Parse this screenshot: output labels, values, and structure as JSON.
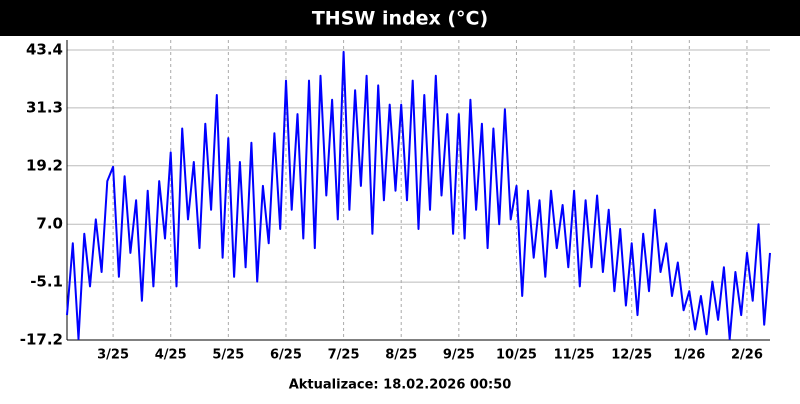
{
  "chart_data": {
    "type": "line",
    "title": "THSW index (°C)",
    "footer": "Aktualizace: 18.02.2026 00:50",
    "categories": [
      null,
      null,
      null,
      null,
      null,
      null,
      null,
      null,
      "3/25",
      null,
      null,
      null,
      null,
      null,
      null,
      null,
      null,
      null,
      "4/25",
      null,
      null,
      null,
      null,
      null,
      null,
      null,
      null,
      null,
      "5/25",
      null,
      null,
      null,
      null,
      null,
      null,
      null,
      null,
      null,
      "6/25",
      null,
      null,
      null,
      null,
      null,
      null,
      null,
      null,
      null,
      "7/25",
      null,
      null,
      null,
      null,
      null,
      null,
      null,
      null,
      null,
      "8/25",
      null,
      null,
      null,
      null,
      null,
      null,
      null,
      null,
      null,
      "9/25",
      null,
      null,
      null,
      null,
      null,
      null,
      null,
      null,
      null,
      "10/25",
      null,
      null,
      null,
      null,
      null,
      null,
      null,
      null,
      null,
      "11/25",
      null,
      null,
      null,
      null,
      null,
      null,
      null,
      null,
      null,
      "12/25",
      null,
      null,
      null,
      null,
      null,
      null,
      null,
      null,
      null,
      "1/26",
      null,
      null,
      null,
      null,
      null,
      null,
      null,
      null,
      null,
      "2/26",
      null,
      null,
      null,
      null
    ],
    "series": [
      {
        "color": "#0000ff",
        "values": [
          -12,
          3,
          -17,
          5,
          -6,
          8,
          -3,
          16,
          19,
          -4,
          17,
          1,
          12,
          -9,
          14,
          -6,
          16,
          4,
          22,
          -6,
          27,
          8,
          20,
          2,
          28,
          10,
          34,
          0,
          25,
          -4,
          20,
          -2,
          24,
          -5,
          15,
          3,
          26,
          6,
          37,
          10,
          30,
          4,
          37,
          2,
          38,
          13,
          33,
          8,
          43,
          10,
          35,
          15,
          38,
          5,
          36,
          12,
          32,
          14,
          32,
          12,
          37,
          6,
          34,
          10,
          38,
          13,
          30,
          5,
          30,
          4,
          33,
          10,
          28,
          2,
          27,
          7,
          31,
          8,
          15,
          -8,
          14,
          0,
          12,
          -4,
          14,
          2,
          11,
          -2,
          14,
          -6,
          12,
          -2,
          13,
          -3,
          10,
          -7,
          6,
          -10,
          3,
          -12,
          5,
          -7,
          10,
          -3,
          3,
          -8,
          -1,
          -11,
          -7,
          -15,
          -8,
          -16,
          -5,
          -13,
          -2,
          -17,
          -3,
          -12,
          1,
          -9,
          7,
          -14,
          1
        ]
      }
    ],
    "ylim": [
      -17.2,
      43.4
    ],
    "yticks": [
      43.4,
      31.3,
      19.2,
      {
        "value": 7,
        "label": "7.0"
      },
      -5.1,
      -17.2
    ],
    "grid": true
  }
}
